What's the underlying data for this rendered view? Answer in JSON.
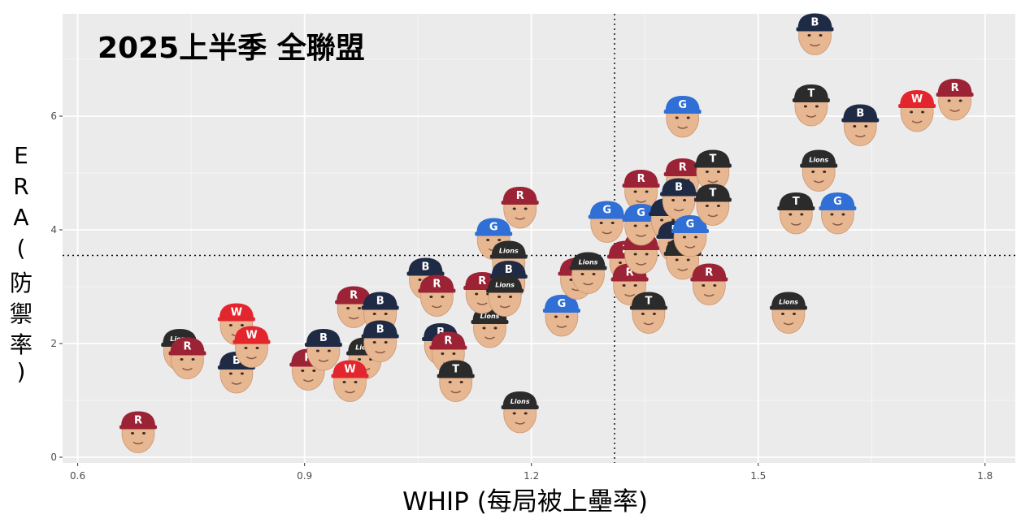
{
  "chart_data": {
    "type": "scatter",
    "title": "2025上半季  全聯盟",
    "xlabel": "WHIP (每局被上壘率)",
    "ylabel_chars": [
      "E",
      "R",
      "A",
      "(",
      "防",
      "禦",
      "率",
      ")"
    ],
    "xlim": [
      0.58,
      1.84
    ],
    "ylim": [
      -0.1,
      7.8
    ],
    "x_ticks": [
      0.6,
      0.9,
      1.2,
      1.5,
      1.8
    ],
    "x_tick_labels": [
      "0.6",
      "0.9",
      "1.2",
      "1.5",
      "1.8"
    ],
    "y_ticks": [
      0,
      2,
      4,
      6
    ],
    "y_tick_labels": [
      "0",
      "2",
      "4",
      "6"
    ],
    "reference_lines": {
      "x": 1.31,
      "y": 3.55,
      "style": "dotted"
    },
    "grid": true,
    "legend": "none",
    "marker": "player-headshot-with-team-cap",
    "team_colors": {
      "R": "#9b2335",
      "B": "#1f2a44",
      "T": "#2b2b2b",
      "L": "#2b2b2b",
      "G": "#2f6fd6",
      "W": "#e3262e"
    },
    "team_cap_letters": {
      "R": "R",
      "B": "B",
      "T": "T",
      "L": "Lions",
      "G": "G",
      "W": "W"
    },
    "points": [
      {
        "x": 0.68,
        "y": 0.45,
        "team": "R"
      },
      {
        "x": 0.735,
        "y": 1.9,
        "team": "L"
      },
      {
        "x": 0.745,
        "y": 1.75,
        "team": "R"
      },
      {
        "x": 0.81,
        "y": 2.35,
        "team": "W"
      },
      {
        "x": 0.81,
        "y": 1.5,
        "team": "B"
      },
      {
        "x": 0.83,
        "y": 1.95,
        "team": "W"
      },
      {
        "x": 0.905,
        "y": 1.55,
        "team": "R"
      },
      {
        "x": 0.925,
        "y": 1.9,
        "team": "B"
      },
      {
        "x": 0.965,
        "y": 2.65,
        "team": "R"
      },
      {
        "x": 0.98,
        "y": 1.75,
        "team": "L"
      },
      {
        "x": 0.96,
        "y": 1.35,
        "team": "W"
      },
      {
        "x": 1.0,
        "y": 2.55,
        "team": "B"
      },
      {
        "x": 1.0,
        "y": 2.05,
        "team": "B"
      },
      {
        "x": 1.06,
        "y": 3.15,
        "team": "B"
      },
      {
        "x": 1.075,
        "y": 2.85,
        "team": "R"
      },
      {
        "x": 1.08,
        "y": 2.0,
        "team": "B"
      },
      {
        "x": 1.09,
        "y": 1.85,
        "team": "R"
      },
      {
        "x": 1.1,
        "y": 1.35,
        "team": "T"
      },
      {
        "x": 1.145,
        "y": 2.3,
        "team": "L"
      },
      {
        "x": 1.135,
        "y": 2.9,
        "team": "R"
      },
      {
        "x": 1.15,
        "y": 3.85,
        "team": "G"
      },
      {
        "x": 1.17,
        "y": 3.45,
        "team": "L"
      },
      {
        "x": 1.17,
        "y": 3.1,
        "team": "B"
      },
      {
        "x": 1.165,
        "y": 2.85,
        "team": "L"
      },
      {
        "x": 1.185,
        "y": 4.4,
        "team": "R"
      },
      {
        "x": 1.185,
        "y": 0.8,
        "team": "L"
      },
      {
        "x": 1.24,
        "y": 2.5,
        "team": "G"
      },
      {
        "x": 1.26,
        "y": 3.15,
        "team": "R"
      },
      {
        "x": 1.275,
        "y": 3.25,
        "team": "L"
      },
      {
        "x": 1.3,
        "y": 4.15,
        "team": "G"
      },
      {
        "x": 1.325,
        "y": 3.45,
        "team": "R"
      },
      {
        "x": 1.33,
        "y": 3.05,
        "team": "R"
      },
      {
        "x": 1.345,
        "y": 4.7,
        "team": "R"
      },
      {
        "x": 1.345,
        "y": 3.6,
        "team": "R"
      },
      {
        "x": 1.345,
        "y": 4.1,
        "team": "G"
      },
      {
        "x": 1.355,
        "y": 2.55,
        "team": "T"
      },
      {
        "x": 1.38,
        "y": 4.2,
        "team": "B"
      },
      {
        "x": 1.39,
        "y": 3.8,
        "team": "B"
      },
      {
        "x": 1.4,
        "y": 3.5,
        "team": "T"
      },
      {
        "x": 1.4,
        "y": 6.0,
        "team": "G"
      },
      {
        "x": 1.4,
        "y": 4.9,
        "team": "R"
      },
      {
        "x": 1.395,
        "y": 4.55,
        "team": "B"
      },
      {
        "x": 1.41,
        "y": 3.9,
        "team": "G"
      },
      {
        "x": 1.44,
        "y": 5.05,
        "team": "T"
      },
      {
        "x": 1.44,
        "y": 4.45,
        "team": "T"
      },
      {
        "x": 1.435,
        "y": 3.05,
        "team": "R"
      },
      {
        "x": 1.54,
        "y": 2.55,
        "team": "L"
      },
      {
        "x": 1.55,
        "y": 4.3,
        "team": "T"
      },
      {
        "x": 1.57,
        "y": 6.2,
        "team": "T"
      },
      {
        "x": 1.58,
        "y": 5.05,
        "team": "L"
      },
      {
        "x": 1.575,
        "y": 7.45,
        "team": "B"
      },
      {
        "x": 1.605,
        "y": 4.3,
        "team": "G"
      },
      {
        "x": 1.635,
        "y": 5.85,
        "team": "B"
      },
      {
        "x": 1.71,
        "y": 6.1,
        "team": "W"
      },
      {
        "x": 1.76,
        "y": 6.3,
        "team": "R"
      }
    ]
  }
}
